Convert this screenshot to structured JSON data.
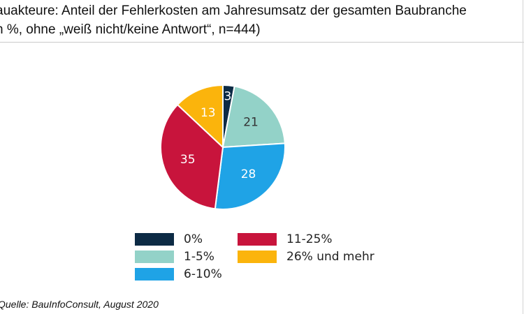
{
  "header": {
    "title_line1": "auakteure: Anteil der Fehlerkosten am Jahresumsatz der gesamten Baubranche",
    "title_line2": "n %, ohne „weiß nicht/keine Antwort“, n=444)"
  },
  "source": "Quelle: BauInfoConsult, August 2020",
  "chart_data": {
    "type": "pie",
    "slices": [
      {
        "label": "0%",
        "value": 3,
        "color": "#0d2b45",
        "text_color": "#ffffff"
      },
      {
        "label": "1-5%",
        "value": 21,
        "color": "#93d2c8",
        "text_color": "#333333"
      },
      {
        "label": "6-10%",
        "value": 28,
        "color": "#1fa3e6",
        "text_color": "#ffffff"
      },
      {
        "label": "11-25%",
        "value": 35,
        "color": "#c8143c",
        "text_color": "#ffffff"
      },
      {
        "label": "26% und mehr",
        "value": 13,
        "color": "#fbb40c",
        "text_color": "#ffffff"
      }
    ]
  }
}
